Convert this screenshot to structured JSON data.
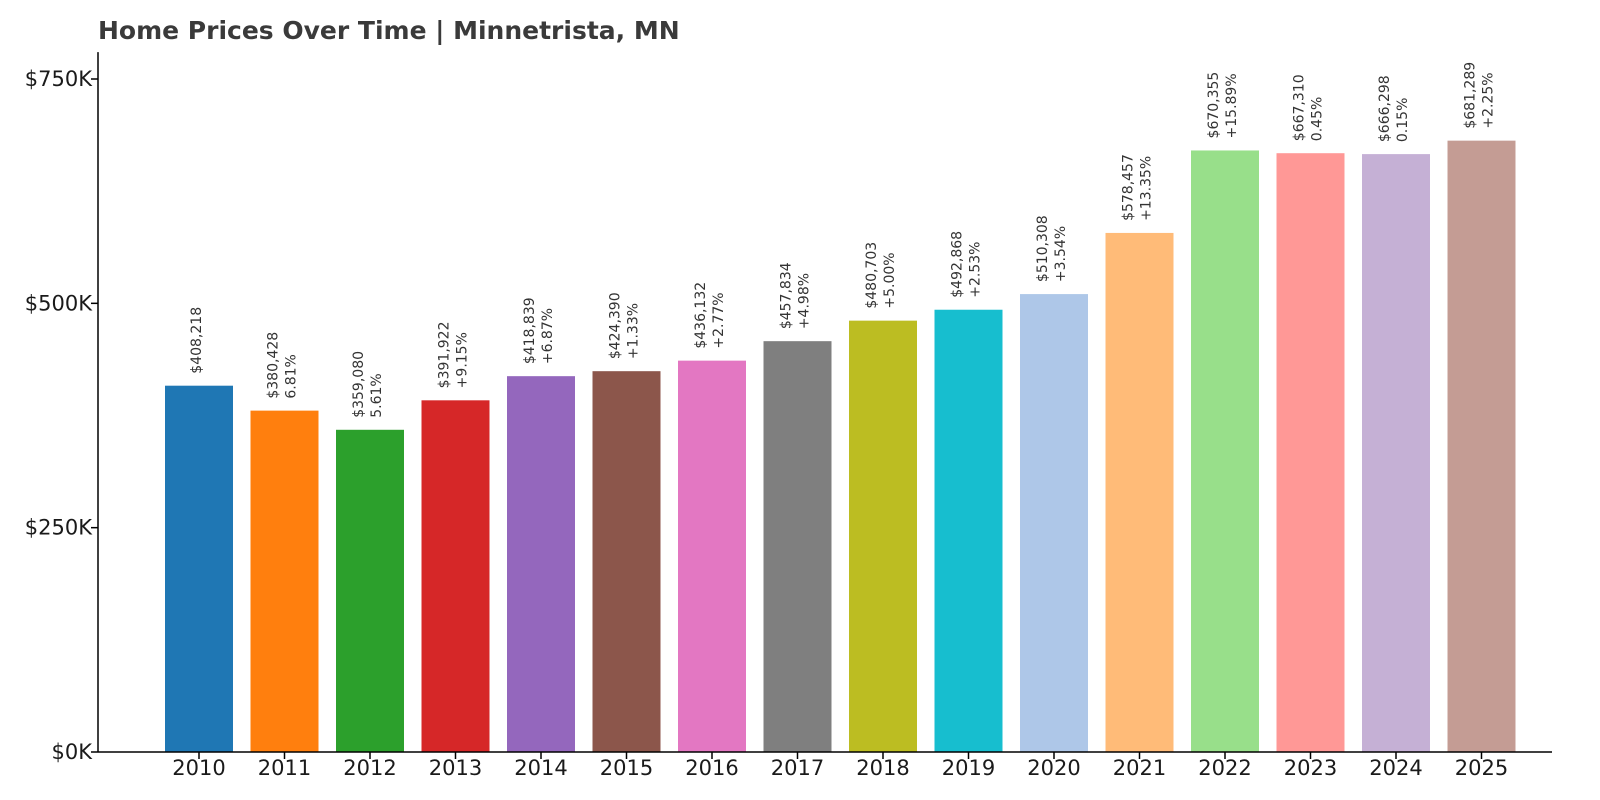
{
  "chart_data": {
    "type": "bar",
    "title": "Home Prices Over Time | Minnetrista, MN",
    "xlabel": "",
    "ylabel": "",
    "ylim": [
      0,
      780000
    ],
    "grid": false,
    "y_ticks": [
      {
        "value": 0,
        "label": "$0K"
      },
      {
        "value": 250000,
        "label": "$250K"
      },
      {
        "value": 500000,
        "label": "$500K"
      },
      {
        "value": 750000,
        "label": "$750K"
      }
    ],
    "categories": [
      "2010",
      "2011",
      "2012",
      "2013",
      "2014",
      "2015",
      "2016",
      "2017",
      "2018",
      "2019",
      "2020",
      "2021",
      "2022",
      "2023",
      "2024",
      "2025"
    ],
    "values": [
      408218,
      380428,
      359080,
      391922,
      418839,
      424390,
      436132,
      457834,
      480703,
      492868,
      510308,
      578457,
      670355,
      667310,
      666298,
      681289
    ],
    "value_labels": [
      "$408,218",
      "$380,428",
      "$359,080",
      "$391,922",
      "$418,839",
      "$424,390",
      "$436,132",
      "$457,834",
      "$480,703",
      "$492,868",
      "$510,308",
      "$578,457",
      "$670,355",
      "$667,310",
      "$666,298",
      "$681,289"
    ],
    "change_labels": [
      "",
      "6.81%",
      "5.61%",
      "+9.15%",
      "+6.87%",
      "+1.33%",
      "+2.77%",
      "+4.98%",
      "+5.00%",
      "+2.53%",
      "+3.54%",
      "+13.35%",
      "+15.89%",
      "0.45%",
      "0.15%",
      "+2.25%"
    ],
    "colors": [
      "#1f77b4",
      "#ff7f0e",
      "#2ca02c",
      "#d62728",
      "#9467bd",
      "#8c564b",
      "#e377c2",
      "#7f7f7f",
      "#bcbd22",
      "#17becf",
      "#aec7e8",
      "#ffbb78",
      "#98df8a",
      "#ff9896",
      "#c5b0d5",
      "#c49c94"
    ]
  }
}
